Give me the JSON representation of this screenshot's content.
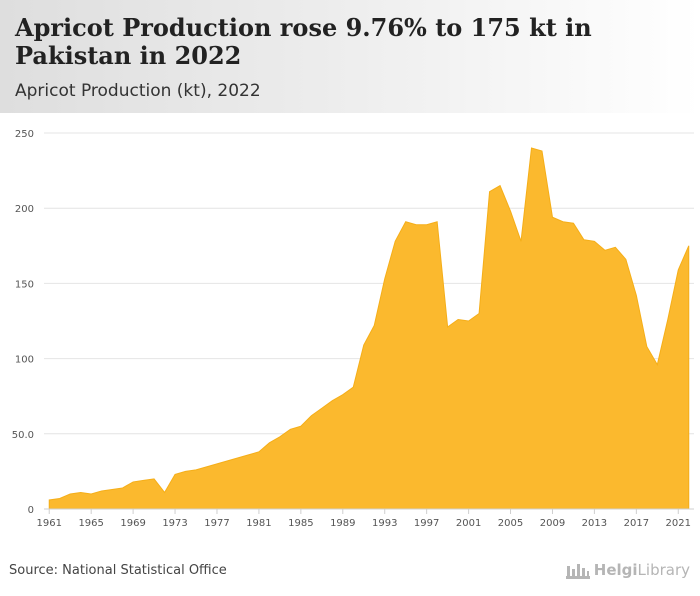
{
  "header": {
    "title": "Apricot Production rose 9.76% to 175 kt in Pakistan in 2022",
    "subtitle": "Apricot Production (kt), 2022"
  },
  "footer": {
    "source": "Source: National Statistical Office",
    "logo_bold": "Helgi",
    "logo_light": "Library"
  },
  "colors": {
    "fill": "#fbb92e",
    "line": "#f5ae18"
  },
  "chart_data": {
    "type": "area",
    "title": "",
    "xlabel": "",
    "ylabel": "",
    "ylim": [
      0,
      250
    ],
    "yticks": [
      0,
      50,
      100,
      150,
      200,
      250
    ],
    "ytick_labels": [
      "0",
      "50.0",
      "100",
      "150",
      "200",
      "250"
    ],
    "xticks": [
      1961,
      1965,
      1969,
      1973,
      1977,
      1981,
      1985,
      1989,
      1993,
      1997,
      2001,
      2005,
      2009,
      2013,
      2017,
      2021
    ],
    "grid": true,
    "legend": "none",
    "series": [
      {
        "x": [
          1961,
          1962,
          1963,
          1964,
          1965,
          1966,
          1967,
          1968,
          1969,
          1970,
          1971,
          1972,
          1973,
          1974,
          1975,
          1976,
          1977,
          1978,
          1979,
          1980,
          1981,
          1982,
          1983,
          1984,
          1985,
          1986,
          1987,
          1988,
          1989,
          1990,
          1991,
          1992,
          1993,
          1994,
          1995,
          1996,
          1997,
          1998,
          1999,
          2000,
          2001,
          2002,
          2003,
          2004,
          2005,
          2006,
          2007,
          2008,
          2009,
          2010,
          2011,
          2012,
          2013,
          2014,
          2015,
          2016,
          2017,
          2018,
          2019,
          2020,
          2021,
          2022
        ],
        "values": [
          6,
          7,
          10,
          11,
          10,
          12,
          13,
          14,
          18,
          19,
          20,
          11,
          23,
          25,
          26,
          28,
          30,
          32,
          34,
          36,
          38,
          44,
          48,
          53,
          55,
          62,
          67,
          72,
          76,
          81,
          109,
          122,
          153,
          178,
          191,
          189,
          189,
          191,
          121,
          126,
          125,
          130,
          211,
          215,
          198,
          178,
          240,
          238,
          194,
          191,
          190,
          179,
          178,
          172,
          174,
          166,
          142,
          108,
          96,
          126,
          159,
          175
        ]
      }
    ]
  }
}
